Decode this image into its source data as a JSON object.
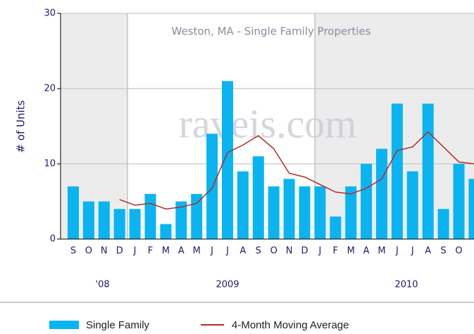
{
  "chart_data": {
    "type": "bar",
    "title": "Weston, MA - Single Family Properties",
    "watermark": "raveis.com",
    "y_label": "# of Units",
    "categories": [
      "S",
      "O",
      "N",
      "D",
      "J",
      "F",
      "M",
      "A",
      "M",
      "J",
      "J",
      "A",
      "S",
      "O",
      "N",
      "D",
      "J",
      "F",
      "M",
      "A",
      "M",
      "J",
      "J",
      "A",
      "S",
      "O",
      null
    ],
    "year_labels": [
      "'08",
      "2009",
      "2010"
    ],
    "series": [
      {
        "name": "Single Family",
        "type": "bar",
        "color": "#0ab4f0",
        "values": [
          7,
          5,
          5,
          4,
          4,
          6,
          2,
          5,
          6,
          14,
          21,
          9,
          11,
          7,
          8,
          7,
          7,
          3,
          7,
          10,
          12,
          18,
          9,
          18,
          4,
          10,
          8
        ]
      },
      {
        "name": "4-Month Moving Average",
        "type": "line",
        "color": "#b22a2a",
        "values": [
          null,
          null,
          null,
          5.25,
          4.5,
          4.75,
          4,
          4.25,
          4.75,
          6.75,
          11.5,
          12.5,
          13.75,
          12,
          8.75,
          8.25,
          7.25,
          6.25,
          6,
          6.75,
          8,
          11.75,
          12.25,
          14.25,
          12.25,
          10.25,
          10
        ]
      }
    ],
    "ylim": [
      0,
      30
    ],
    "yticks": [
      0,
      10,
      20,
      30
    ],
    "grid": true
  }
}
